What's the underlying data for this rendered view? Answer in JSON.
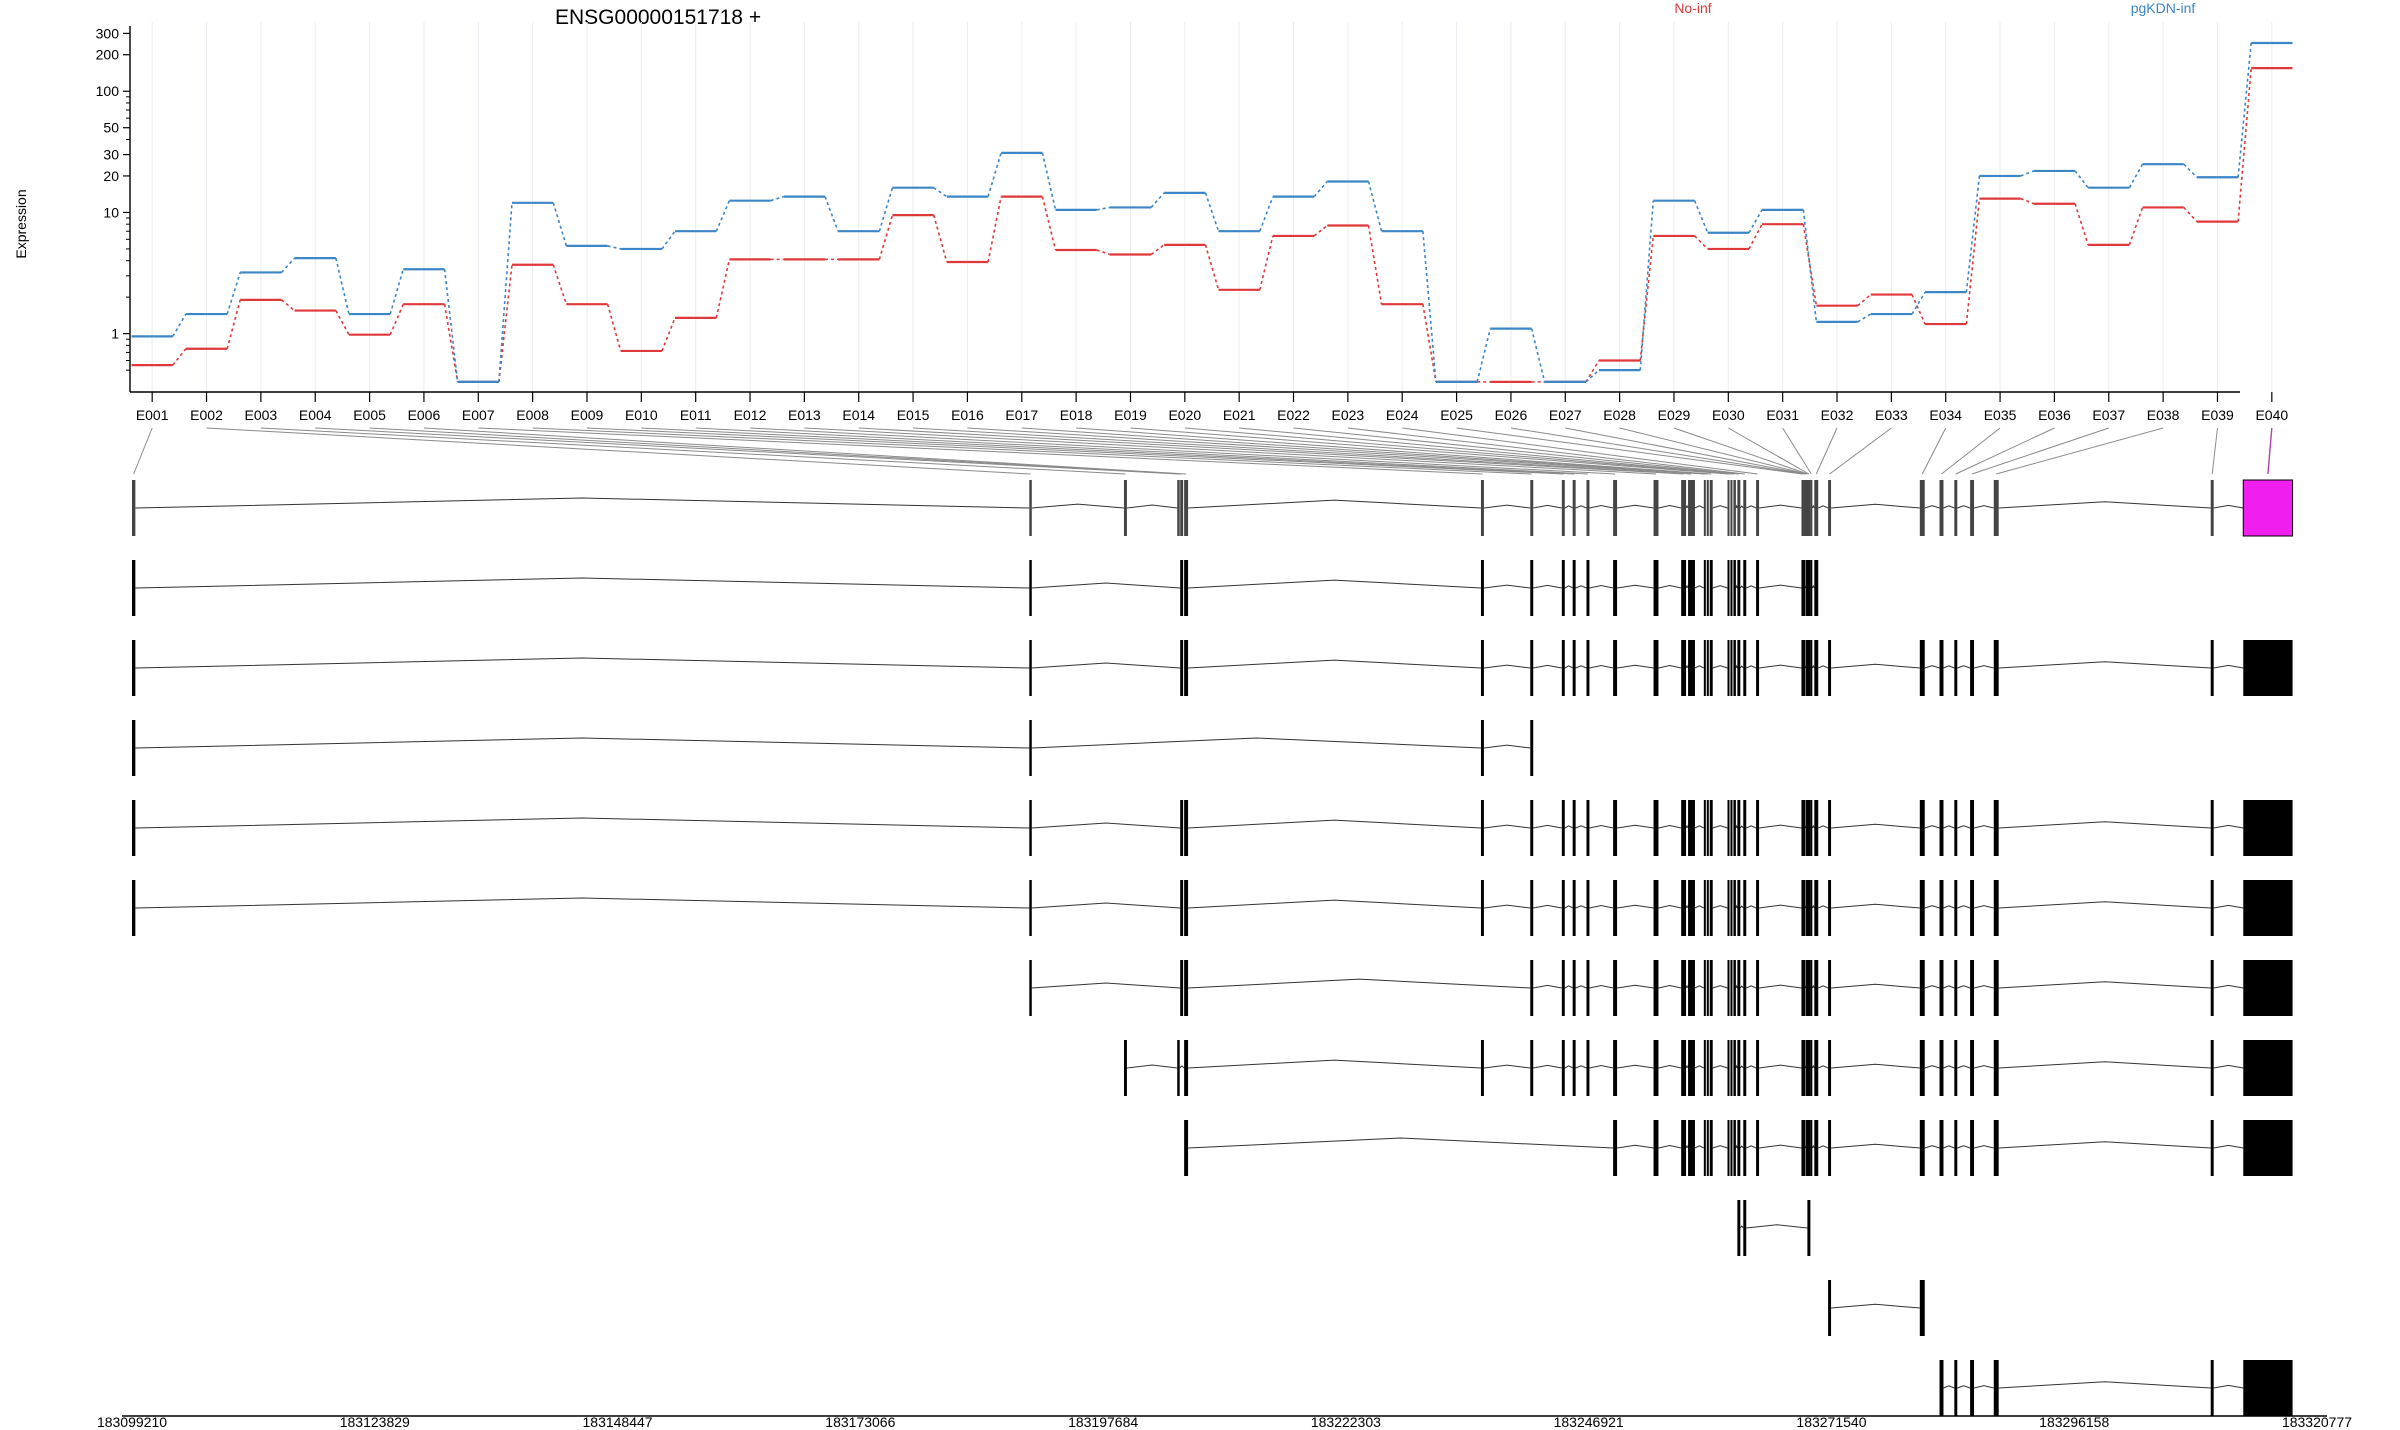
{
  "chart_data": {
    "type": "line",
    "title": "ENSG00000151718 +",
    "ylabel": "Expression",
    "y_scale": "log",
    "ylim": [
      0.33,
      320
    ],
    "y_ticks": [
      "300",
      "200",
      "100",
      "50",
      "30",
      "20",
      "10",
      "1"
    ],
    "y_tick_values": [
      300,
      200,
      100,
      50,
      30,
      20,
      10,
      1
    ],
    "y_minor_ticks": [
      0.5,
      0.6,
      0.7,
      0.8,
      0.9,
      2,
      3,
      4,
      5,
      6,
      7,
      8,
      9,
      40,
      60,
      70,
      80,
      90
    ],
    "legend_position": "top",
    "grid": "vertical",
    "categories": [
      "E001",
      "E002",
      "E003",
      "E004",
      "E005",
      "E006",
      "E007",
      "E008",
      "E009",
      "E010",
      "E011",
      "E012",
      "E013",
      "E014",
      "E015",
      "E016",
      "E017",
      "E018",
      "E019",
      "E020",
      "E021",
      "E022",
      "E023",
      "E024",
      "E025",
      "E026",
      "E027",
      "E028",
      "E029",
      "E030",
      "E031",
      "E032",
      "E033",
      "E034",
      "E035",
      "E036",
      "E037",
      "E038",
      "E039",
      "E040"
    ],
    "series": [
      {
        "name": "No-inf",
        "color": "#e0383a",
        "values": [
          0.55,
          0.75,
          1.9,
          1.55,
          0.98,
          1.75,
          0.4,
          3.7,
          1.75,
          0.72,
          1.35,
          4.1,
          4.1,
          4.1,
          9.5,
          3.9,
          13.5,
          4.9,
          4.5,
          5.4,
          2.3,
          6.4,
          7.8,
          1.75,
          0.4,
          0.4,
          0.4,
          0.6,
          6.4,
          5.0,
          8.0,
          1.7,
          2.1,
          1.2,
          13.0,
          11.8,
          5.4,
          11.0,
          8.4,
          155
        ]
      },
      {
        "name": "pgKDN-inf",
        "color": "#3b86c7",
        "values": [
          0.95,
          1.45,
          3.2,
          4.2,
          1.45,
          3.4,
          0.4,
          12.0,
          5.3,
          5.0,
          7.0,
          12.5,
          13.5,
          7.0,
          16.0,
          13.5,
          31.0,
          10.5,
          11.0,
          14.5,
          7.0,
          13.5,
          18.0,
          7.0,
          0.4,
          1.1,
          0.4,
          0.5,
          12.5,
          6.8,
          10.5,
          1.25,
          1.45,
          2.2,
          20.0,
          22.0,
          16.0,
          25.0,
          19.5,
          250
        ]
      }
    ],
    "genomic_axis_ticks": [
      "183099210",
      "183123829",
      "183148447",
      "183173066",
      "183197684",
      "183222303",
      "183246921",
      "183271540",
      "183296158",
      "183320777"
    ],
    "exon_starts": [
      183099210,
      183190200,
      183199800,
      183205200,
      183205500,
      183205900,
      183236000,
      183241000,
      183244200,
      183245300,
      183246700,
      183249400,
      183253500,
      183256300,
      183257000,
      183258600,
      183258900,
      183259200,
      183261000,
      183261300,
      183261600,
      183262000,
      183262600,
      183263900,
      183268500,
      183268700,
      183268850,
      183268950,
      183269100,
      183269200,
      183269400,
      183269800,
      183271200,
      183280500,
      183282500,
      183284000,
      183285600,
      183288000,
      183310000,
      183313300
    ],
    "exon_ends": [
      183099550,
      183190450,
      183200100,
      183205450,
      183205800,
      183206300,
      183236300,
      183241300,
      183244500,
      183245600,
      183247000,
      183249800,
      183254000,
      183256800,
      183257700,
      183258800,
      183259100,
      183259500,
      183261200,
      183261500,
      183261850,
      183262300,
      183262900,
      183264200,
      183268650,
      183268800,
      183268920,
      183269050,
      183269150,
      183269300,
      183269600,
      183270200,
      183271500,
      183281000,
      183282900,
      183284300,
      183286000,
      183288500,
      183310300,
      183318300
    ],
    "highlight_exon": "E040",
    "transcripts": [
      [
        1,
        2,
        3,
        4,
        5,
        6,
        7,
        8,
        9,
        10,
        11,
        12,
        13,
        14,
        15,
        16,
        17,
        18,
        19,
        20,
        21,
        22,
        23,
        24,
        25,
        26,
        27,
        28,
        29,
        30,
        31,
        32,
        33,
        34,
        35,
        36,
        37,
        38,
        39,
        40
      ],
      [
        1,
        2,
        5,
        6,
        7,
        8,
        9,
        10,
        11,
        12,
        13,
        14,
        15,
        16,
        17,
        18,
        19,
        20,
        21,
        22,
        23,
        24,
        25,
        26,
        28,
        29,
        30,
        31,
        32
      ],
      [
        1,
        2,
        5,
        6,
        7,
        8,
        9,
        10,
        11,
        12,
        13,
        14,
        15,
        16,
        17,
        18,
        19,
        20,
        21,
        22,
        23,
        24,
        25,
        26,
        28,
        29,
        30,
        31,
        32,
        33,
        34,
        35,
        36,
        37,
        38,
        39,
        40
      ],
      [
        1,
        2,
        7,
        8
      ],
      [
        1,
        2,
        5,
        6,
        7,
        8,
        9,
        10,
        11,
        12,
        13,
        14,
        15,
        16,
        17,
        18,
        19,
        20,
        21,
        22,
        23,
        24,
        25,
        26,
        28,
        29,
        30,
        31,
        32,
        33,
        34,
        35,
        36,
        37,
        38,
        39,
        40
      ],
      [
        1,
        2,
        5,
        6,
        7,
        8,
        9,
        10,
        11,
        12,
        13,
        14,
        15,
        16,
        17,
        18,
        19,
        20,
        21,
        22,
        23,
        24,
        25,
        26,
        28,
        29,
        30,
        31,
        32,
        33,
        34,
        35,
        36,
        37,
        38,
        39,
        40
      ],
      [
        2,
        5,
        6,
        8,
        9,
        10,
        11,
        12,
        13,
        14,
        15,
        16,
        17,
        18,
        19,
        20,
        21,
        22,
        23,
        24,
        25,
        26,
        28,
        29,
        30,
        31,
        32,
        33,
        34,
        35,
        36,
        37,
        38,
        39,
        40
      ],
      [
        3,
        4,
        6,
        7,
        8,
        9,
        10,
        11,
        12,
        13,
        14,
        15,
        16,
        17,
        18,
        19,
        20,
        21,
        22,
        23,
        24,
        25,
        26,
        28,
        29,
        30,
        31,
        32,
        33,
        34,
        35,
        36,
        37,
        38,
        39,
        40
      ],
      [
        6,
        12,
        13,
        14,
        15,
        16,
        17,
        18,
        19,
        20,
        21,
        22,
        23,
        24,
        25,
        26,
        28,
        29,
        30,
        31,
        32,
        33,
        34,
        35,
        36,
        37,
        38,
        39,
        40
      ],
      [
        22,
        23,
        29,
        30
      ],
      [
        33,
        34
      ],
      [
        35,
        36,
        37,
        38,
        39,
        40
      ]
    ]
  }
}
